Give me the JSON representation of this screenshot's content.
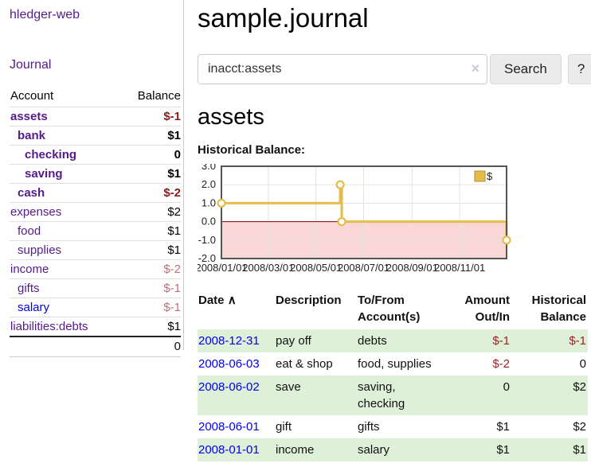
{
  "app": {
    "brand": "hledger-web",
    "nav_journal": "Journal"
  },
  "colors": {
    "accent_purple": "#551a8b",
    "link_blue": "#0000ee",
    "negative_strong": "#8f1a1a",
    "negative_soft": "#c0707a",
    "register_row_green": "#dff0d8",
    "chart_gold": "#e4bc4b",
    "chart_negative_bg": "#f9d7d7",
    "chart_zero_line": "#8b0000"
  },
  "sidebar": {
    "headers": {
      "account": "Account",
      "balance": "Balance"
    },
    "accounts": [
      {
        "name": "assets",
        "indent": 1,
        "bold": true,
        "color": "purple",
        "balance": "$-1",
        "balance_tone": "strong"
      },
      {
        "name": "bank",
        "indent": 2,
        "bold": true,
        "color": "purple",
        "balance": "$1",
        "balance_tone": "none"
      },
      {
        "name": "checking",
        "indent": 3,
        "bold": true,
        "color": "purple",
        "balance": "0",
        "balance_tone": "none"
      },
      {
        "name": "saving",
        "indent": 3,
        "bold": true,
        "color": "purple",
        "balance": "$1",
        "balance_tone": "none"
      },
      {
        "name": "cash",
        "indent": 2,
        "bold": true,
        "color": "purple",
        "balance": "$-2",
        "balance_tone": "strong"
      },
      {
        "name": "expenses",
        "indent": 1,
        "bold": false,
        "color": "purple",
        "balance": "$2",
        "balance_tone": "none"
      },
      {
        "name": "food",
        "indent": 2,
        "bold": false,
        "color": "purple",
        "balance": "$1",
        "balance_tone": "none"
      },
      {
        "name": "supplies",
        "indent": 2,
        "bold": false,
        "color": "purple",
        "balance": "$1",
        "balance_tone": "none"
      },
      {
        "name": "income",
        "indent": 1,
        "bold": false,
        "color": "purple",
        "balance": "$-2",
        "balance_tone": "soft"
      },
      {
        "name": "gifts",
        "indent": 2,
        "bold": false,
        "color": "purple",
        "balance": "$-1",
        "balance_tone": "soft"
      },
      {
        "name": "salary",
        "indent": 2,
        "bold": false,
        "color": "blue",
        "balance": "$-1",
        "balance_tone": "soft"
      },
      {
        "name": "liabilities:debts",
        "indent": 1,
        "bold": false,
        "color": "purple",
        "balance": "$1",
        "balance_tone": "none"
      }
    ],
    "total": "0"
  },
  "header": {
    "title": "sample.journal"
  },
  "search": {
    "value": "inacct:assets",
    "clear_icon": "×",
    "button_label": "Search",
    "help_label": "?"
  },
  "account_page": {
    "heading": "assets",
    "chart_label": "Historical Balance:"
  },
  "chart_data": {
    "type": "line",
    "title": "Historical Balance:",
    "legend": "$",
    "legend_position": "top-right",
    "grid": true,
    "step": true,
    "x_range": [
      "2008-01-01",
      "2008-12-31"
    ],
    "ylim": [
      -2,
      3
    ],
    "y_ticks": [
      "3.0",
      "2.0",
      "1.0",
      "0.0",
      "-1.0",
      "-2.0"
    ],
    "x_ticks": [
      "2008/01/01",
      "2008/03/01",
      "2008/05/01",
      "2008/07/01",
      "2008/09/01",
      "2008/11/01"
    ],
    "series": [
      {
        "name": "$",
        "points": [
          [
            "2008-01-01",
            1
          ],
          [
            "2008-06-01",
            2
          ],
          [
            "2008-06-03",
            0
          ],
          [
            "2008-12-31",
            -1
          ]
        ]
      }
    ]
  },
  "register": {
    "headers": {
      "date": "Date",
      "sort_indicator": "∧",
      "description": "Description",
      "accounts": "To/From\nAccount(s)",
      "amount": "Amount\nOut/In",
      "balance": "Historical\nBalance"
    },
    "rows": [
      {
        "date": "2008-12-31",
        "description": "pay off",
        "accounts_lines": [
          "debts"
        ],
        "amount": "$-1",
        "amount_neg": true,
        "balance": "$-1",
        "balance_neg": true,
        "shaded": true
      },
      {
        "date": "2008-06-03",
        "description": "eat & shop",
        "accounts_lines": [
          "food, supplies"
        ],
        "amount": "$-2",
        "amount_neg": true,
        "balance": "0",
        "balance_neg": false,
        "shaded": false
      },
      {
        "date": "2008-06-02",
        "description": "save",
        "accounts_lines": [
          "saving,",
          "checking"
        ],
        "amount": "0",
        "amount_neg": false,
        "balance": "$2",
        "balance_neg": false,
        "shaded": true
      },
      {
        "date": "2008-06-01",
        "description": "gift",
        "accounts_lines": [
          "gifts"
        ],
        "amount": "$1",
        "amount_neg": false,
        "balance": "$2",
        "balance_neg": false,
        "shaded": false
      },
      {
        "date": "2008-01-01",
        "description": "income",
        "accounts_lines": [
          "salary"
        ],
        "amount": "$1",
        "amount_neg": false,
        "balance": "$1",
        "balance_neg": false,
        "shaded": true
      }
    ]
  }
}
